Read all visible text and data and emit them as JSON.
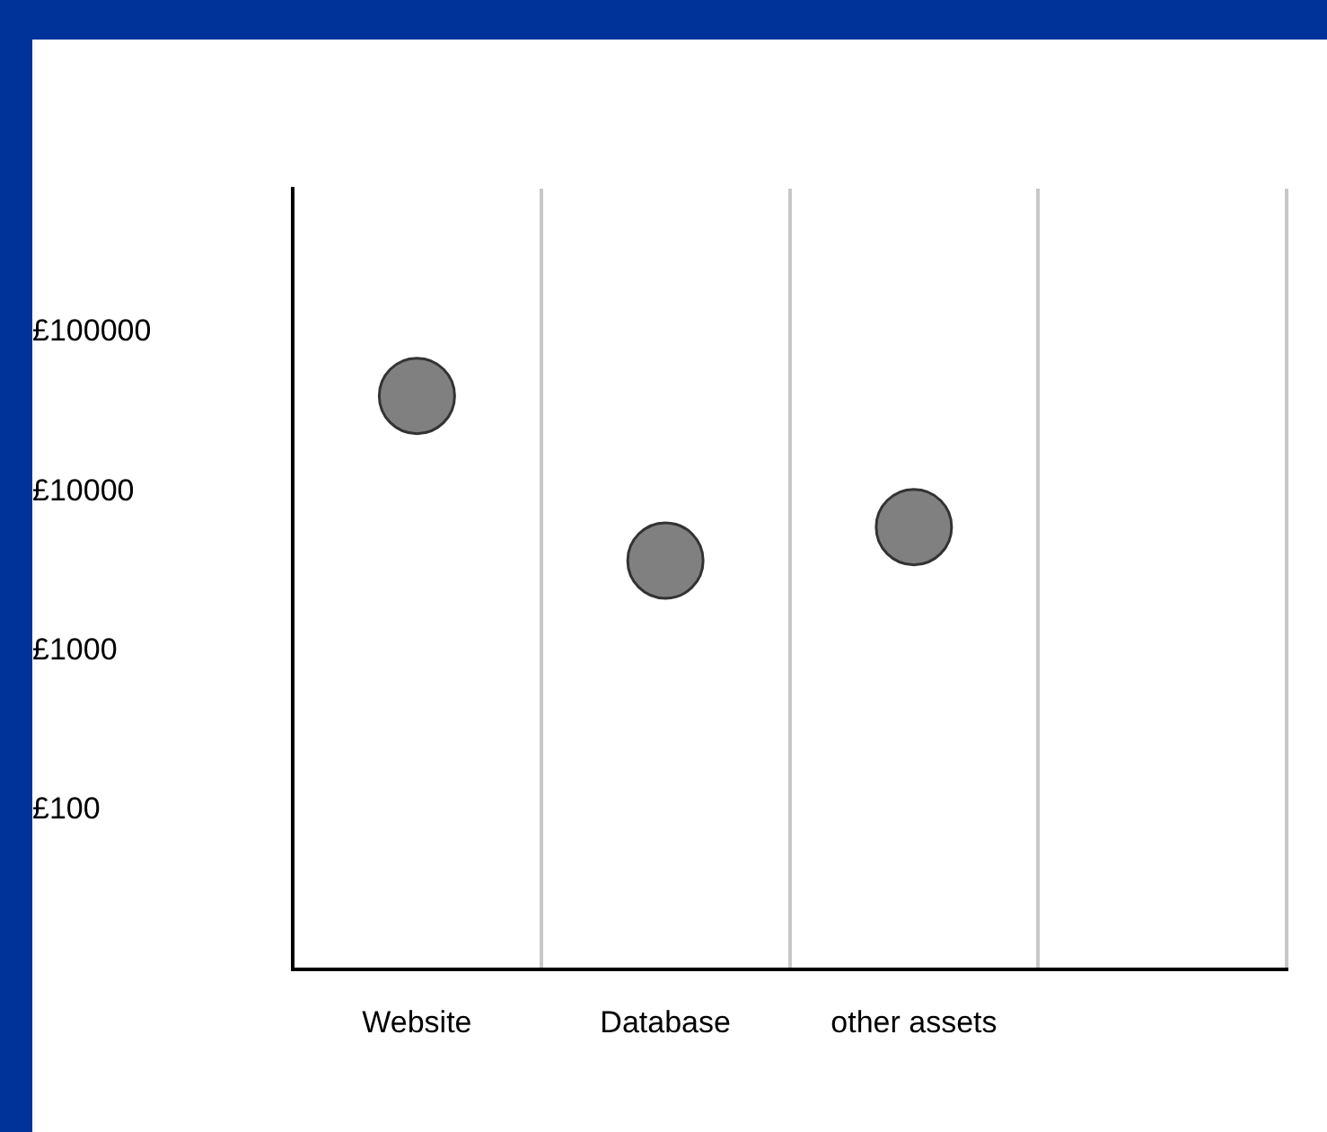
{
  "chart_data": {
    "type": "scatter",
    "categories": [
      "Website",
      "Database",
      "other assets",
      null
    ],
    "values": [
      40000,
      3700,
      6000,
      null
    ],
    "color": "#808080",
    "log": "y",
    "ylim": [
      10,
      800000
    ],
    "yticks": [
      {
        "value": 100,
        "label": "£100"
      },
      {
        "value": 1000,
        "label": "£1000"
      },
      {
        "value": 10000,
        "label": "£10000"
      },
      {
        "value": 100000,
        "label": "£100000"
      }
    ],
    "grid": "x",
    "marker": "circle"
  }
}
